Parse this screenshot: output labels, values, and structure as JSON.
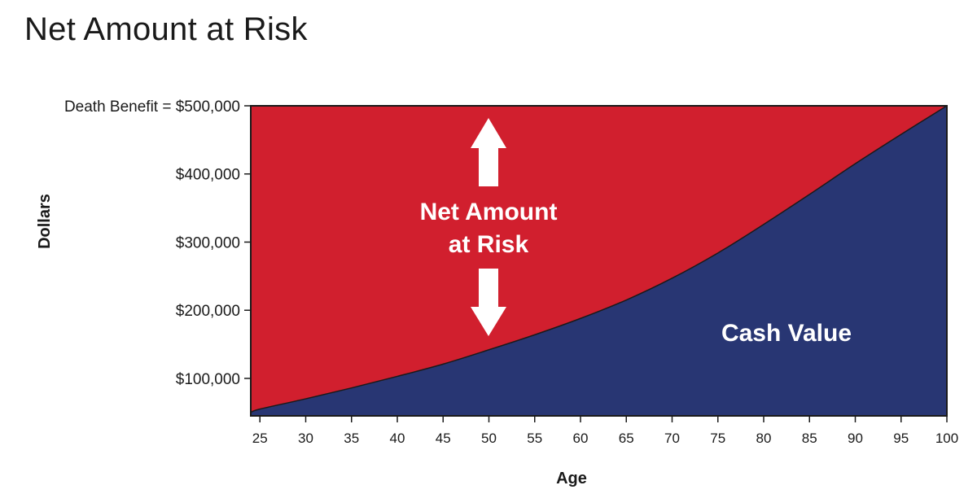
{
  "title": "Net Amount at Risk",
  "chart_data": {
    "type": "area",
    "title": "Net Amount at Risk",
    "xlabel": "Age",
    "ylabel": "Dollars",
    "x": [
      24,
      25,
      30,
      35,
      40,
      45,
      50,
      55,
      60,
      65,
      70,
      75,
      80,
      85,
      90,
      95,
      100
    ],
    "xticks": [
      25,
      30,
      35,
      40,
      45,
      50,
      55,
      60,
      65,
      70,
      75,
      80,
      85,
      90,
      95,
      100
    ],
    "xlim": [
      24,
      100
    ],
    "ylim": [
      45000,
      500000
    ],
    "yticks": [
      {
        "value": 100000,
        "label": "$100,000"
      },
      {
        "value": 200000,
        "label": "$200,000"
      },
      {
        "value": 300000,
        "label": "$300,000"
      },
      {
        "value": 400000,
        "label": "$400,000"
      },
      {
        "value": 500000,
        "label": "Death Benefit = $500,000"
      }
    ],
    "series": [
      {
        "name": "Net Amount at Risk",
        "color": "#d11f2e",
        "values": [
          500000,
          500000,
          500000,
          500000,
          500000,
          500000,
          500000,
          500000,
          500000,
          500000,
          500000,
          500000,
          500000,
          500000,
          500000,
          500000,
          500000
        ]
      },
      {
        "name": "Cash Value",
        "color": "#283673",
        "values": [
          50000,
          55000,
          70000,
          86000,
          103000,
          121000,
          142000,
          164000,
          188000,
          215000,
          247000,
          284000,
          326000,
          370000,
          415000,
          458000,
          500000
        ]
      }
    ],
    "annotations": [
      {
        "text_lines": [
          "Net Amount",
          "at Risk"
        ],
        "arrows": [
          "up",
          "down"
        ],
        "color": "#ffffff"
      },
      {
        "text_lines": [
          "Cash Value"
        ],
        "color": "#ffffff"
      }
    ]
  }
}
